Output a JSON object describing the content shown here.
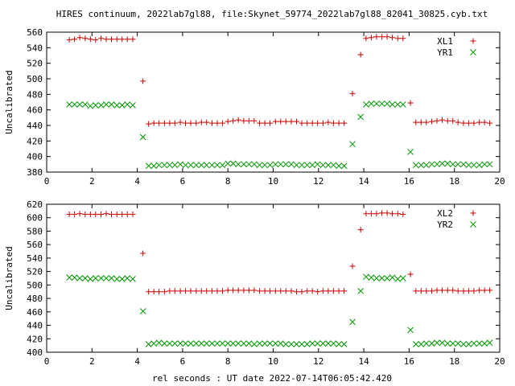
{
  "title": "HIRES continuum, 2022lab7gl88, file:Skynet_59774_2022lab7gl88_82041_30825.cyb.txt",
  "xlabel": "rel seconds : UT date 2022-07-14T06:05:42.420",
  "colors": {
    "red": "#cc0000",
    "green": "#009900"
  },
  "chart_data": [
    {
      "type": "scatter",
      "ylabel": "Uncalibrated",
      "xlim": [
        0,
        20
      ],
      "ylim": [
        380,
        560
      ],
      "xticks": [
        0,
        2,
        4,
        6,
        8,
        10,
        12,
        14,
        16,
        18,
        20
      ],
      "yticks": [
        380,
        400,
        420,
        440,
        460,
        480,
        500,
        520,
        540,
        560
      ],
      "legend_position": "top-right",
      "series": [
        {
          "name": "XL1",
          "marker": "plus",
          "color": "#cc0000",
          "x": [
            1.0,
            1.23,
            1.46,
            1.7,
            1.93,
            2.16,
            2.4,
            2.63,
            2.86,
            3.1,
            3.33,
            3.56,
            3.8,
            4.25,
            4.5,
            4.73,
            4.96,
            5.2,
            5.43,
            5.66,
            5.9,
            6.13,
            6.36,
            6.6,
            6.83,
            7.06,
            7.3,
            7.53,
            7.76,
            8.0,
            8.23,
            8.46,
            8.7,
            8.93,
            9.16,
            9.4,
            9.63,
            9.86,
            10.1,
            10.33,
            10.56,
            10.8,
            11.03,
            11.26,
            11.5,
            11.73,
            11.96,
            12.2,
            12.43,
            12.66,
            12.9,
            13.13,
            13.5,
            13.86,
            14.1,
            14.33,
            14.56,
            14.8,
            15.03,
            15.26,
            15.5,
            15.73,
            16.06,
            16.3,
            16.53,
            16.76,
            17.0,
            17.23,
            17.46,
            17.7,
            17.93,
            18.16,
            18.4,
            18.63,
            18.86,
            19.1,
            19.33,
            19.56
          ],
          "y": [
            550,
            551,
            553,
            552,
            551,
            550,
            552,
            551,
            551,
            551,
            551,
            551,
            551,
            497,
            442,
            443,
            443,
            443,
            443,
            443,
            444,
            443,
            443,
            443,
            444,
            444,
            443,
            443,
            443,
            445,
            446,
            447,
            446,
            446,
            446,
            443,
            443,
            443,
            445,
            445,
            445,
            445,
            445,
            443,
            443,
            443,
            443,
            443,
            444,
            443,
            443,
            443,
            481,
            531,
            552,
            553,
            554,
            554,
            554,
            553,
            552,
            552,
            469,
            444,
            444,
            444,
            445,
            446,
            447,
            446,
            446,
            444,
            443,
            443,
            443,
            444,
            444,
            443
          ]
        },
        {
          "name": "YR1",
          "marker": "cross",
          "color": "#009900",
          "x": [
            1.0,
            1.23,
            1.46,
            1.7,
            1.93,
            2.16,
            2.4,
            2.63,
            2.86,
            3.1,
            3.33,
            3.56,
            3.8,
            4.25,
            4.5,
            4.73,
            4.96,
            5.2,
            5.43,
            5.66,
            5.9,
            6.13,
            6.36,
            6.6,
            6.83,
            7.06,
            7.3,
            7.53,
            7.76,
            8.0,
            8.23,
            8.46,
            8.7,
            8.93,
            9.16,
            9.4,
            9.63,
            9.86,
            10.1,
            10.33,
            10.56,
            10.8,
            11.03,
            11.26,
            11.5,
            11.73,
            11.96,
            12.2,
            12.43,
            12.66,
            12.9,
            13.13,
            13.5,
            13.86,
            14.1,
            14.33,
            14.56,
            14.8,
            15.03,
            15.26,
            15.5,
            15.73,
            16.06,
            16.3,
            16.53,
            16.76,
            17.0,
            17.23,
            17.46,
            17.7,
            17.93,
            18.16,
            18.4,
            18.63,
            18.86,
            19.1,
            19.33,
            19.56
          ],
          "y": [
            467,
            467,
            467,
            467,
            465,
            466,
            466,
            467,
            467,
            466,
            466,
            467,
            466,
            425,
            388,
            388,
            389,
            389,
            389,
            389,
            390,
            389,
            389,
            389,
            389,
            389,
            389,
            389,
            389,
            391,
            391,
            390,
            390,
            390,
            390,
            389,
            389,
            389,
            390,
            390,
            390,
            390,
            389,
            389,
            389,
            389,
            390,
            389,
            389,
            389,
            388,
            388,
            416,
            451,
            467,
            468,
            468,
            468,
            468,
            467,
            467,
            467,
            406,
            389,
            389,
            389,
            390,
            390,
            391,
            391,
            390,
            390,
            390,
            389,
            389,
            389,
            390,
            390
          ]
        }
      ]
    },
    {
      "type": "scatter",
      "ylabel": "Uncalibrated",
      "xlim": [
        0,
        20
      ],
      "ylim": [
        400,
        620
      ],
      "xticks": [
        0,
        2,
        4,
        6,
        8,
        10,
        12,
        14,
        16,
        18,
        20
      ],
      "yticks": [
        400,
        420,
        440,
        460,
        480,
        500,
        520,
        540,
        560,
        580,
        600,
        620
      ],
      "legend_position": "top-right",
      "series": [
        {
          "name": "XL2",
          "marker": "plus",
          "color": "#cc0000",
          "x": [
            1.0,
            1.23,
            1.46,
            1.7,
            1.93,
            2.16,
            2.4,
            2.63,
            2.86,
            3.1,
            3.33,
            3.56,
            3.8,
            4.25,
            4.5,
            4.73,
            4.96,
            5.2,
            5.43,
            5.66,
            5.9,
            6.13,
            6.36,
            6.6,
            6.83,
            7.06,
            7.3,
            7.53,
            7.76,
            8.0,
            8.23,
            8.46,
            8.7,
            8.93,
            9.16,
            9.4,
            9.63,
            9.86,
            10.1,
            10.33,
            10.56,
            10.8,
            11.03,
            11.26,
            11.5,
            11.73,
            11.96,
            12.2,
            12.43,
            12.66,
            12.9,
            13.13,
            13.5,
            13.86,
            14.1,
            14.33,
            14.56,
            14.8,
            15.03,
            15.26,
            15.5,
            15.73,
            16.06,
            16.3,
            16.53,
            16.76,
            17.0,
            17.23,
            17.46,
            17.7,
            17.93,
            18.16,
            18.4,
            18.63,
            18.86,
            19.1,
            19.33,
            19.56
          ],
          "y": [
            605,
            605,
            606,
            605,
            605,
            605,
            605,
            606,
            605,
            605,
            605,
            605,
            605,
            547,
            490,
            490,
            490,
            490,
            491,
            491,
            491,
            491,
            491,
            491,
            491,
            491,
            491,
            491,
            491,
            492,
            492,
            492,
            492,
            492,
            492,
            491,
            491,
            491,
            491,
            491,
            491,
            491,
            490,
            490,
            491,
            491,
            490,
            491,
            491,
            491,
            491,
            491,
            528,
            582,
            606,
            606,
            606,
            607,
            607,
            606,
            606,
            605,
            516,
            491,
            491,
            491,
            491,
            492,
            492,
            492,
            492,
            491,
            491,
            491,
            491,
            492,
            492,
            492
          ]
        },
        {
          "name": "YR2",
          "marker": "cross",
          "color": "#009900",
          "x": [
            1.0,
            1.23,
            1.46,
            1.7,
            1.93,
            2.16,
            2.4,
            2.63,
            2.86,
            3.1,
            3.33,
            3.56,
            3.8,
            4.25,
            4.5,
            4.73,
            4.96,
            5.2,
            5.43,
            5.66,
            5.9,
            6.13,
            6.36,
            6.6,
            6.83,
            7.06,
            7.3,
            7.53,
            7.76,
            8.0,
            8.23,
            8.46,
            8.7,
            8.93,
            9.16,
            9.4,
            9.63,
            9.86,
            10.1,
            10.33,
            10.56,
            10.8,
            11.03,
            11.26,
            11.5,
            11.73,
            11.96,
            12.2,
            12.43,
            12.66,
            12.9,
            13.13,
            13.5,
            13.86,
            14.1,
            14.33,
            14.56,
            14.8,
            15.03,
            15.26,
            15.5,
            15.73,
            16.06,
            16.3,
            16.53,
            16.76,
            17.0,
            17.23,
            17.46,
            17.7,
            17.93,
            18.16,
            18.4,
            18.63,
            18.86,
            19.1,
            19.33,
            19.56
          ],
          "y": [
            511,
            511,
            510,
            510,
            509,
            510,
            510,
            510,
            510,
            509,
            509,
            510,
            509,
            461,
            412,
            413,
            414,
            413,
            413,
            413,
            413,
            413,
            413,
            413,
            413,
            413,
            413,
            413,
            413,
            413,
            413,
            413,
            413,
            413,
            412,
            413,
            413,
            413,
            413,
            413,
            412,
            412,
            412,
            412,
            412,
            413,
            413,
            413,
            413,
            413,
            412,
            412,
            445,
            491,
            512,
            511,
            510,
            510,
            510,
            511,
            509,
            510,
            433,
            412,
            412,
            413,
            413,
            414,
            414,
            413,
            413,
            413,
            412,
            412,
            413,
            413,
            413,
            414
          ]
        }
      ]
    }
  ]
}
